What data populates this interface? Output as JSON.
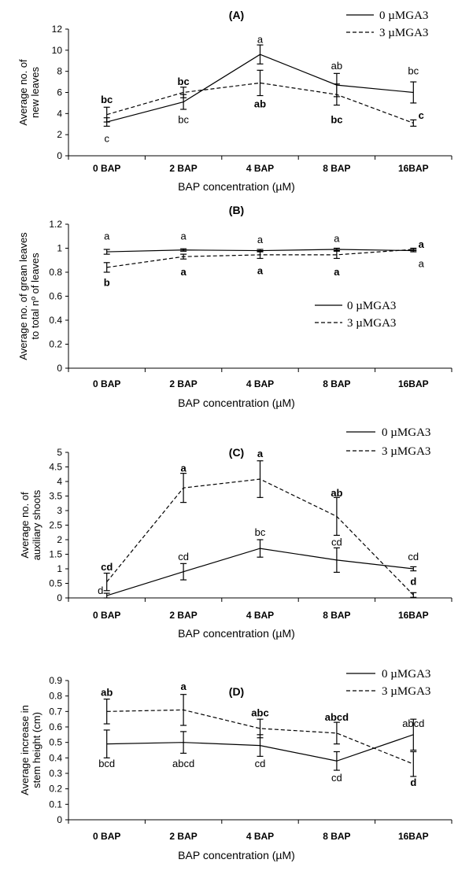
{
  "chart_data": [
    {
      "type": "line",
      "title": "(A)",
      "xlabel": "BAP concentration (µM)",
      "ylabel_lines": [
        "Average no. of",
        "new leaves"
      ],
      "categories": [
        "0 BAP",
        "2 BAP",
        "4 BAP",
        "8 BAP",
        "16BAP"
      ],
      "ylim": [
        0,
        12
      ],
      "yticks": [
        "0",
        "2",
        "4",
        "6",
        "8",
        "10",
        "12"
      ],
      "legend_position": "top-right",
      "series": [
        {
          "name": "0 µMGA3",
          "style": "solid",
          "values": [
            3.2,
            5.1,
            9.6,
            6.7,
            6.0
          ],
          "errors": [
            0.4,
            0.7,
            0.9,
            1.1,
            1.0
          ]
        },
        {
          "name": "3 µMGA3",
          "style": "dashed",
          "values": [
            3.9,
            6.0,
            6.9,
            5.8,
            3.1
          ],
          "errors": [
            0.7,
            0.5,
            1.2,
            1.0,
            0.3
          ]
        }
      ],
      "annotations": [
        {
          "text": "bc",
          "cat": 0,
          "y": 5.3,
          "bold": true
        },
        {
          "text": "c",
          "cat": 0,
          "y": 1.6,
          "bold": false
        },
        {
          "text": "bc",
          "cat": 1,
          "y": 7.0,
          "bold": true
        },
        {
          "text": "bc",
          "cat": 1,
          "y": 3.4,
          "bold": false
        },
        {
          "text": "a",
          "cat": 2,
          "y": 11.0,
          "bold": false
        },
        {
          "text": "ab",
          "cat": 2,
          "y": 4.9,
          "bold": true
        },
        {
          "text": "ab",
          "cat": 3,
          "y": 8.5,
          "bold": false
        },
        {
          "text": "bc",
          "cat": 3,
          "y": 3.4,
          "bold": true
        },
        {
          "text": "bc",
          "cat": 4,
          "y": 8.0,
          "bold": false
        },
        {
          "text": "c",
          "cat": 4,
          "y": 3.8,
          "bold": true,
          "dx": 10
        }
      ]
    },
    {
      "type": "line",
      "title": "(B)",
      "xlabel": "BAP concentration (µM)",
      "ylabel_lines": [
        "Average no. of grean leaves",
        "to total nº of leaves"
      ],
      "categories": [
        "0 BAP",
        "2 BAP",
        "4 BAP",
        "8 BAP",
        "16BAP"
      ],
      "ylim": [
        0,
        1.2
      ],
      "yticks": [
        "0",
        "0.2",
        "0.4",
        "0.6",
        "0.8",
        "1",
        "1.2"
      ],
      "legend_position": "center-right",
      "series": [
        {
          "name": "0 µMGA3",
          "style": "solid",
          "values": [
            0.97,
            0.985,
            0.98,
            0.99,
            0.98
          ],
          "errors": [
            0.02,
            0.01,
            0.01,
            0.01,
            0.01
          ]
        },
        {
          "name": "3 µMGA3",
          "style": "dashed",
          "values": [
            0.84,
            0.93,
            0.945,
            0.945,
            0.99
          ],
          "errors": [
            0.04,
            0.02,
            0.03,
            0.03,
            0.01
          ]
        }
      ],
      "annotations": [
        {
          "text": "a",
          "cat": 0,
          "y": 1.1,
          "bold": false
        },
        {
          "text": "b",
          "cat": 0,
          "y": 0.71,
          "bold": true
        },
        {
          "text": "a",
          "cat": 1,
          "y": 1.1,
          "bold": false
        },
        {
          "text": "a",
          "cat": 1,
          "y": 0.8,
          "bold": true
        },
        {
          "text": "a",
          "cat": 2,
          "y": 1.07,
          "bold": false
        },
        {
          "text": "a",
          "cat": 2,
          "y": 0.81,
          "bold": true
        },
        {
          "text": "a",
          "cat": 3,
          "y": 1.08,
          "bold": false
        },
        {
          "text": "a",
          "cat": 3,
          "y": 0.8,
          "bold": true
        },
        {
          "text": "a",
          "cat": 4,
          "y": 1.03,
          "bold": true,
          "dx": 10
        },
        {
          "text": "a",
          "cat": 4,
          "y": 0.87,
          "bold": false,
          "dx": 10
        }
      ]
    },
    {
      "type": "line",
      "title": "(C)",
      "xlabel": "BAP concentration (µM)",
      "ylabel_lines": [
        "Average no. of",
        "auxiliary shoots"
      ],
      "categories": [
        "0 BAP",
        "2 BAP",
        "4 BAP",
        "8 BAP",
        "16BAP"
      ],
      "ylim": [
        0,
        5
      ],
      "yticks": [
        "0",
        "0.5",
        "1",
        "1.5",
        "2",
        "2.5",
        "3",
        "3.5",
        "4",
        "4.5",
        "5"
      ],
      "legend_position": "top-right",
      "series": [
        {
          "name": "0 µMGA3",
          "style": "solid",
          "values": [
            0.08,
            0.9,
            1.7,
            1.3,
            1.0
          ],
          "errors": [
            0.08,
            0.28,
            0.3,
            0.42,
            0.07
          ]
        },
        {
          "name": "3 µMGA3",
          "style": "dashed",
          "values": [
            0.55,
            3.78,
            4.08,
            2.8,
            0.1
          ],
          "errors": [
            0.3,
            0.5,
            0.63,
            0.65,
            0.08
          ]
        }
      ],
      "annotations": [
        {
          "text": "cd",
          "cat": 0,
          "y": 1.05,
          "bold": true
        },
        {
          "text": "d",
          "cat": 0,
          "y": 0.25,
          "bold": false,
          "dx": -8
        },
        {
          "text": "a",
          "cat": 1,
          "y": 4.45,
          "bold": true
        },
        {
          "text": "cd",
          "cat": 1,
          "y": 1.4,
          "bold": false
        },
        {
          "text": "a",
          "cat": 2,
          "y": 4.95,
          "bold": true
        },
        {
          "text": "bc",
          "cat": 2,
          "y": 2.25,
          "bold": false
        },
        {
          "text": "ab",
          "cat": 3,
          "y": 3.6,
          "bold": true
        },
        {
          "text": "cd",
          "cat": 3,
          "y": 1.9,
          "bold": false
        },
        {
          "text": "cd",
          "cat": 4,
          "y": 1.4,
          "bold": false
        },
        {
          "text": "d",
          "cat": 4,
          "y": 0.55,
          "bold": true
        }
      ]
    },
    {
      "type": "line",
      "title": "(D)",
      "xlabel": "BAP concentration (µM)",
      "ylabel_lines": [
        "Average increase in",
        "stem height (cm)"
      ],
      "categories": [
        "0 BAP",
        "2 BAP",
        "4 BAP",
        "8 BAP",
        "16BAP"
      ],
      "ylim": [
        0,
        0.9
      ],
      "yticks": [
        "0",
        "0.1",
        "0.2",
        "0.3",
        "0.4",
        "0.5",
        "0.6",
        "0.7",
        "0.8",
        "0.9"
      ],
      "legend_position": "top-right",
      "series": [
        {
          "name": "0 µMGA3",
          "style": "solid",
          "values": [
            0.49,
            0.5,
            0.48,
            0.38,
            0.55
          ],
          "errors": [
            0.09,
            0.07,
            0.07,
            0.06,
            0.1
          ]
        },
        {
          "name": "3 µMGA3",
          "style": "dashed",
          "values": [
            0.7,
            0.71,
            0.59,
            0.56,
            0.36
          ],
          "errors": [
            0.08,
            0.1,
            0.06,
            0.07,
            0.08
          ]
        }
      ],
      "annotations": [
        {
          "text": "ab",
          "cat": 0,
          "y": 0.82,
          "bold": true
        },
        {
          "text": "bcd",
          "cat": 0,
          "y": 0.36,
          "bold": false
        },
        {
          "text": "a",
          "cat": 1,
          "y": 0.86,
          "bold": true
        },
        {
          "text": "abcd",
          "cat": 1,
          "y": 0.36,
          "bold": false
        },
        {
          "text": "abc",
          "cat": 2,
          "y": 0.69,
          "bold": true
        },
        {
          "text": "cd",
          "cat": 2,
          "y": 0.36,
          "bold": false
        },
        {
          "text": "abcd",
          "cat": 3,
          "y": 0.66,
          "bold": true
        },
        {
          "text": "cd",
          "cat": 3,
          "y": 0.27,
          "bold": false
        },
        {
          "text": "abcd",
          "cat": 4,
          "y": 0.62,
          "bold": false
        },
        {
          "text": "d",
          "cat": 4,
          "y": 0.24,
          "bold": true
        }
      ]
    }
  ]
}
